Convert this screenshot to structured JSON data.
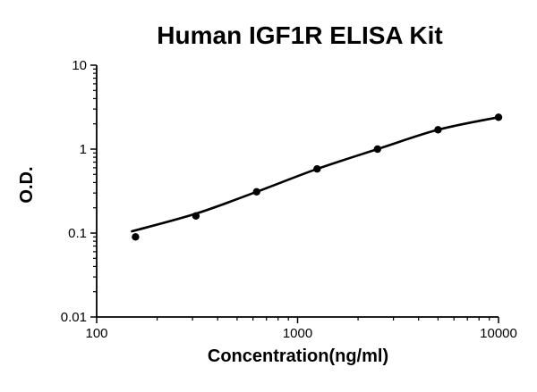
{
  "chart_data": {
    "type": "line",
    "title": "Human IGF1R ELISA Kit",
    "xlabel": "Concentration(ng/ml)",
    "ylabel": "O.D.",
    "x_scale": "log",
    "y_scale": "log",
    "xlim": [
      100,
      10000
    ],
    "ylim": [
      0.01,
      10
    ],
    "x_ticks": [
      100,
      1000,
      10000
    ],
    "y_ticks": [
      0.01,
      0.1,
      1,
      10
    ],
    "grid": false,
    "legend": "none",
    "background": "#ffffff",
    "line_color": "#000000",
    "marker_color": "#000000",
    "points": [
      {
        "x": 156,
        "y": 0.09
      },
      {
        "x": 312,
        "y": 0.16
      },
      {
        "x": 625,
        "y": 0.31
      },
      {
        "x": 1250,
        "y": 0.58
      },
      {
        "x": 2500,
        "y": 1.0
      },
      {
        "x": 5000,
        "y": 1.7
      },
      {
        "x": 10000,
        "y": 2.4
      }
    ],
    "curve_points": [
      {
        "x": 150,
        "y": 0.105
      },
      {
        "x": 312,
        "y": 0.17
      },
      {
        "x": 625,
        "y": 0.31
      },
      {
        "x": 1250,
        "y": 0.58
      },
      {
        "x": 2500,
        "y": 1.0
      },
      {
        "x": 5000,
        "y": 1.7
      },
      {
        "x": 10000,
        "y": 2.4
      }
    ]
  }
}
